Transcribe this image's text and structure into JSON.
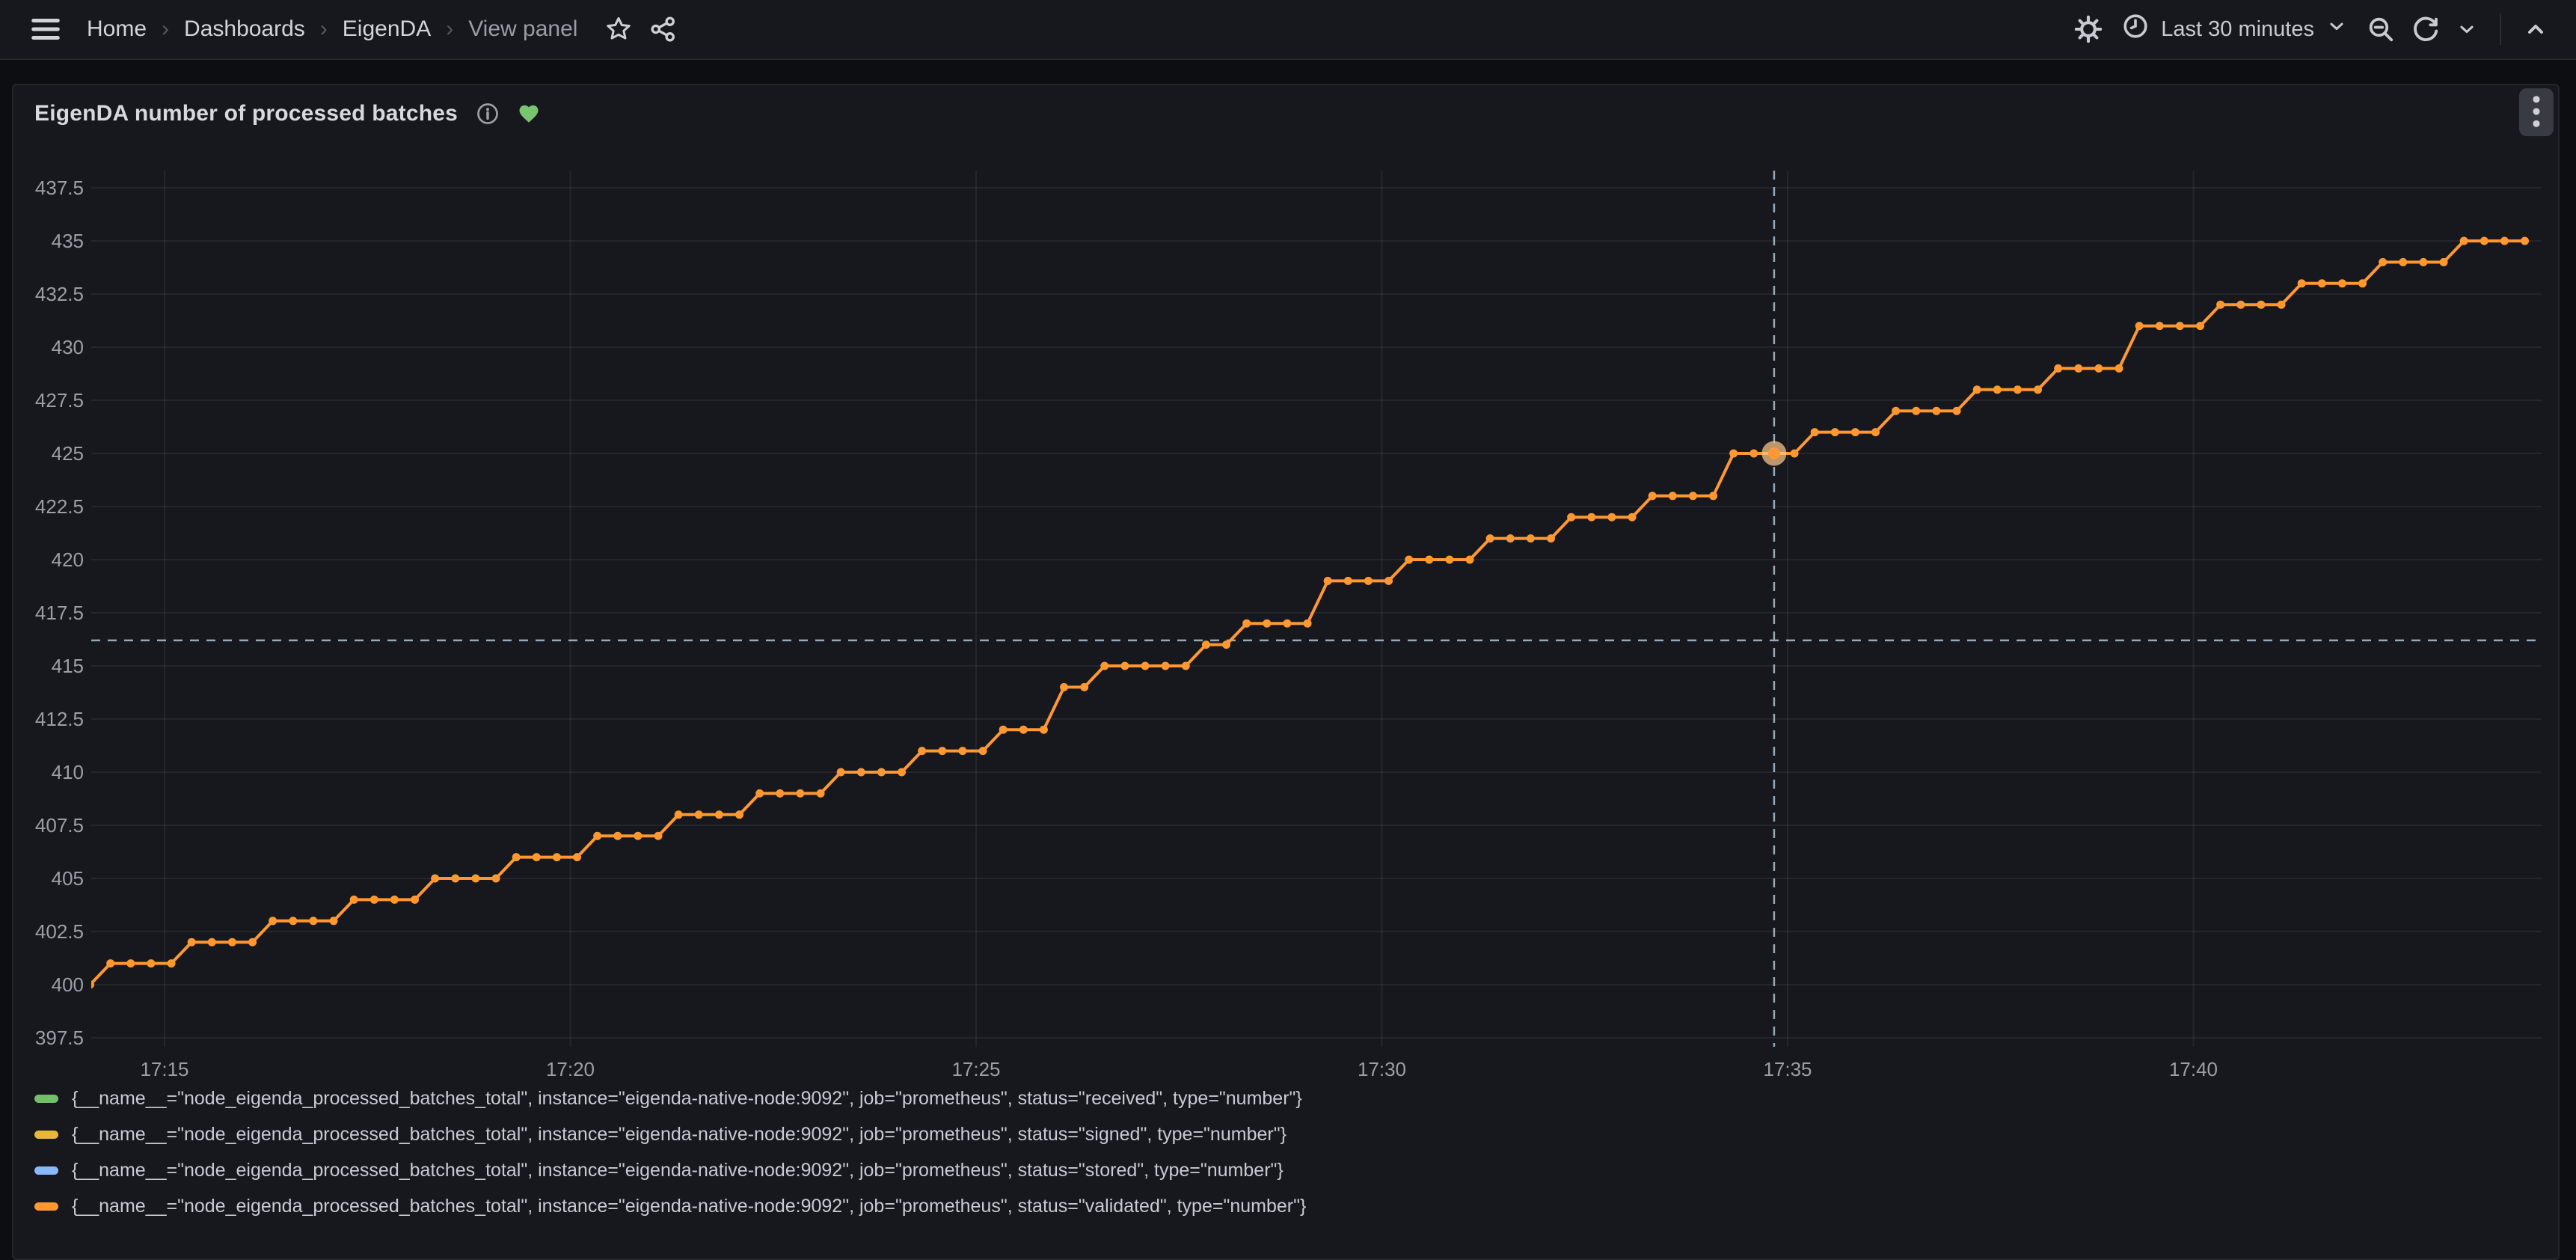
{
  "nav": {
    "breadcrumb": [
      "Home",
      "Dashboards",
      "EigenDA",
      "View panel"
    ],
    "separator": "›",
    "time_range_label": "Last 30 minutes"
  },
  "panel": {
    "title": "EigenDA number of processed batches"
  },
  "colors": {
    "orange": "#FF9830",
    "green": "#73BF69",
    "yellow": "#EAB839",
    "blue": "#8AB8FF",
    "heart": "#77C56F",
    "crosshair": "#A7B8C7",
    "gridline": "rgba(204,204,220,0.08)",
    "axis_text": "#9D9FA7"
  },
  "chart_data": {
    "type": "line",
    "title": "EigenDA number of processed batches",
    "x_ticks": [
      "17:15",
      "17:20",
      "17:25",
      "17:30",
      "17:35",
      "17:40"
    ],
    "y_ticks": [
      "437.5",
      "435",
      "432.5",
      "430",
      "427.5",
      "425",
      "422.5",
      "420",
      "417.5",
      "415",
      "412.5",
      "410",
      "407.5",
      "405",
      "402.5",
      "400",
      "397.5"
    ],
    "ylim": [
      397.1,
      438.2
    ],
    "x_window": [
      "17:14:06",
      "17:44:08"
    ],
    "grid": true,
    "legend_position": "bottom",
    "sample_interval_s": 15,
    "marker": "circle",
    "series": [
      {
        "status": "received",
        "color": "#73BF69",
        "label": "{__name__=\"node_eigenda_processed_batches_total\", instance=\"eigenda-native-node:9092\", job=\"prometheus\", status=\"received\", type=\"number\"}"
      },
      {
        "status": "signed",
        "color": "#EAB839",
        "label": "{__name__=\"node_eigenda_processed_batches_total\", instance=\"eigenda-native-node:9092\", job=\"prometheus\", status=\"signed\", type=\"number\"}"
      },
      {
        "status": "stored",
        "color": "#8AB8FF",
        "label": "{__name__=\"node_eigenda_processed_batches_total\", instance=\"eigenda-native-node:9092\", job=\"prometheus\", status=\"stored\", type=\"number\"}"
      },
      {
        "status": "validated",
        "color": "#FF9830",
        "label": "{__name__=\"node_eigenda_processed_batches_total\", instance=\"eigenda-native-node:9092\", job=\"prometheus\", status=\"validated\", type=\"number\"}"
      }
    ],
    "note": "All four series have identical values and overlap; the orange 'validated' series is drawn on top so only it is visible.",
    "steps": [
      [
        "17:14:00",
        400
      ],
      [
        "17:14:15",
        401
      ],
      [
        "17:15:15",
        402
      ],
      [
        "17:16:15",
        403
      ],
      [
        "17:17:10",
        404
      ],
      [
        "17:18:10",
        405
      ],
      [
        "17:19:10",
        406
      ],
      [
        "17:20:10",
        407
      ],
      [
        "17:21:10",
        408
      ],
      [
        "17:22:10",
        409
      ],
      [
        "17:23:10",
        410
      ],
      [
        "17:24:10",
        411
      ],
      [
        "17:25:10",
        412
      ],
      [
        "17:25:55",
        414
      ],
      [
        "17:26:30",
        415
      ],
      [
        "17:27:40",
        416
      ],
      [
        "17:28:10",
        417
      ],
      [
        "17:29:10",
        419
      ],
      [
        "17:30:10",
        420
      ],
      [
        "17:31:10",
        421
      ],
      [
        "17:32:10",
        422
      ],
      [
        "17:33:10",
        423
      ],
      [
        "17:34:10",
        425
      ],
      [
        "17:35:10",
        426
      ],
      [
        "17:36:10",
        427
      ],
      [
        "17:37:10",
        428
      ],
      [
        "17:38:10",
        429
      ],
      [
        "17:39:10",
        431
      ],
      [
        "17:40:10",
        432
      ],
      [
        "17:41:10",
        433
      ],
      [
        "17:42:10",
        434
      ],
      [
        "17:43:10",
        435
      ]
    ],
    "series_end": "17:44:06",
    "crosshair": {
      "time": "17:34:50",
      "cursor_value": 416.2,
      "snapped_point_value": 425
    }
  }
}
